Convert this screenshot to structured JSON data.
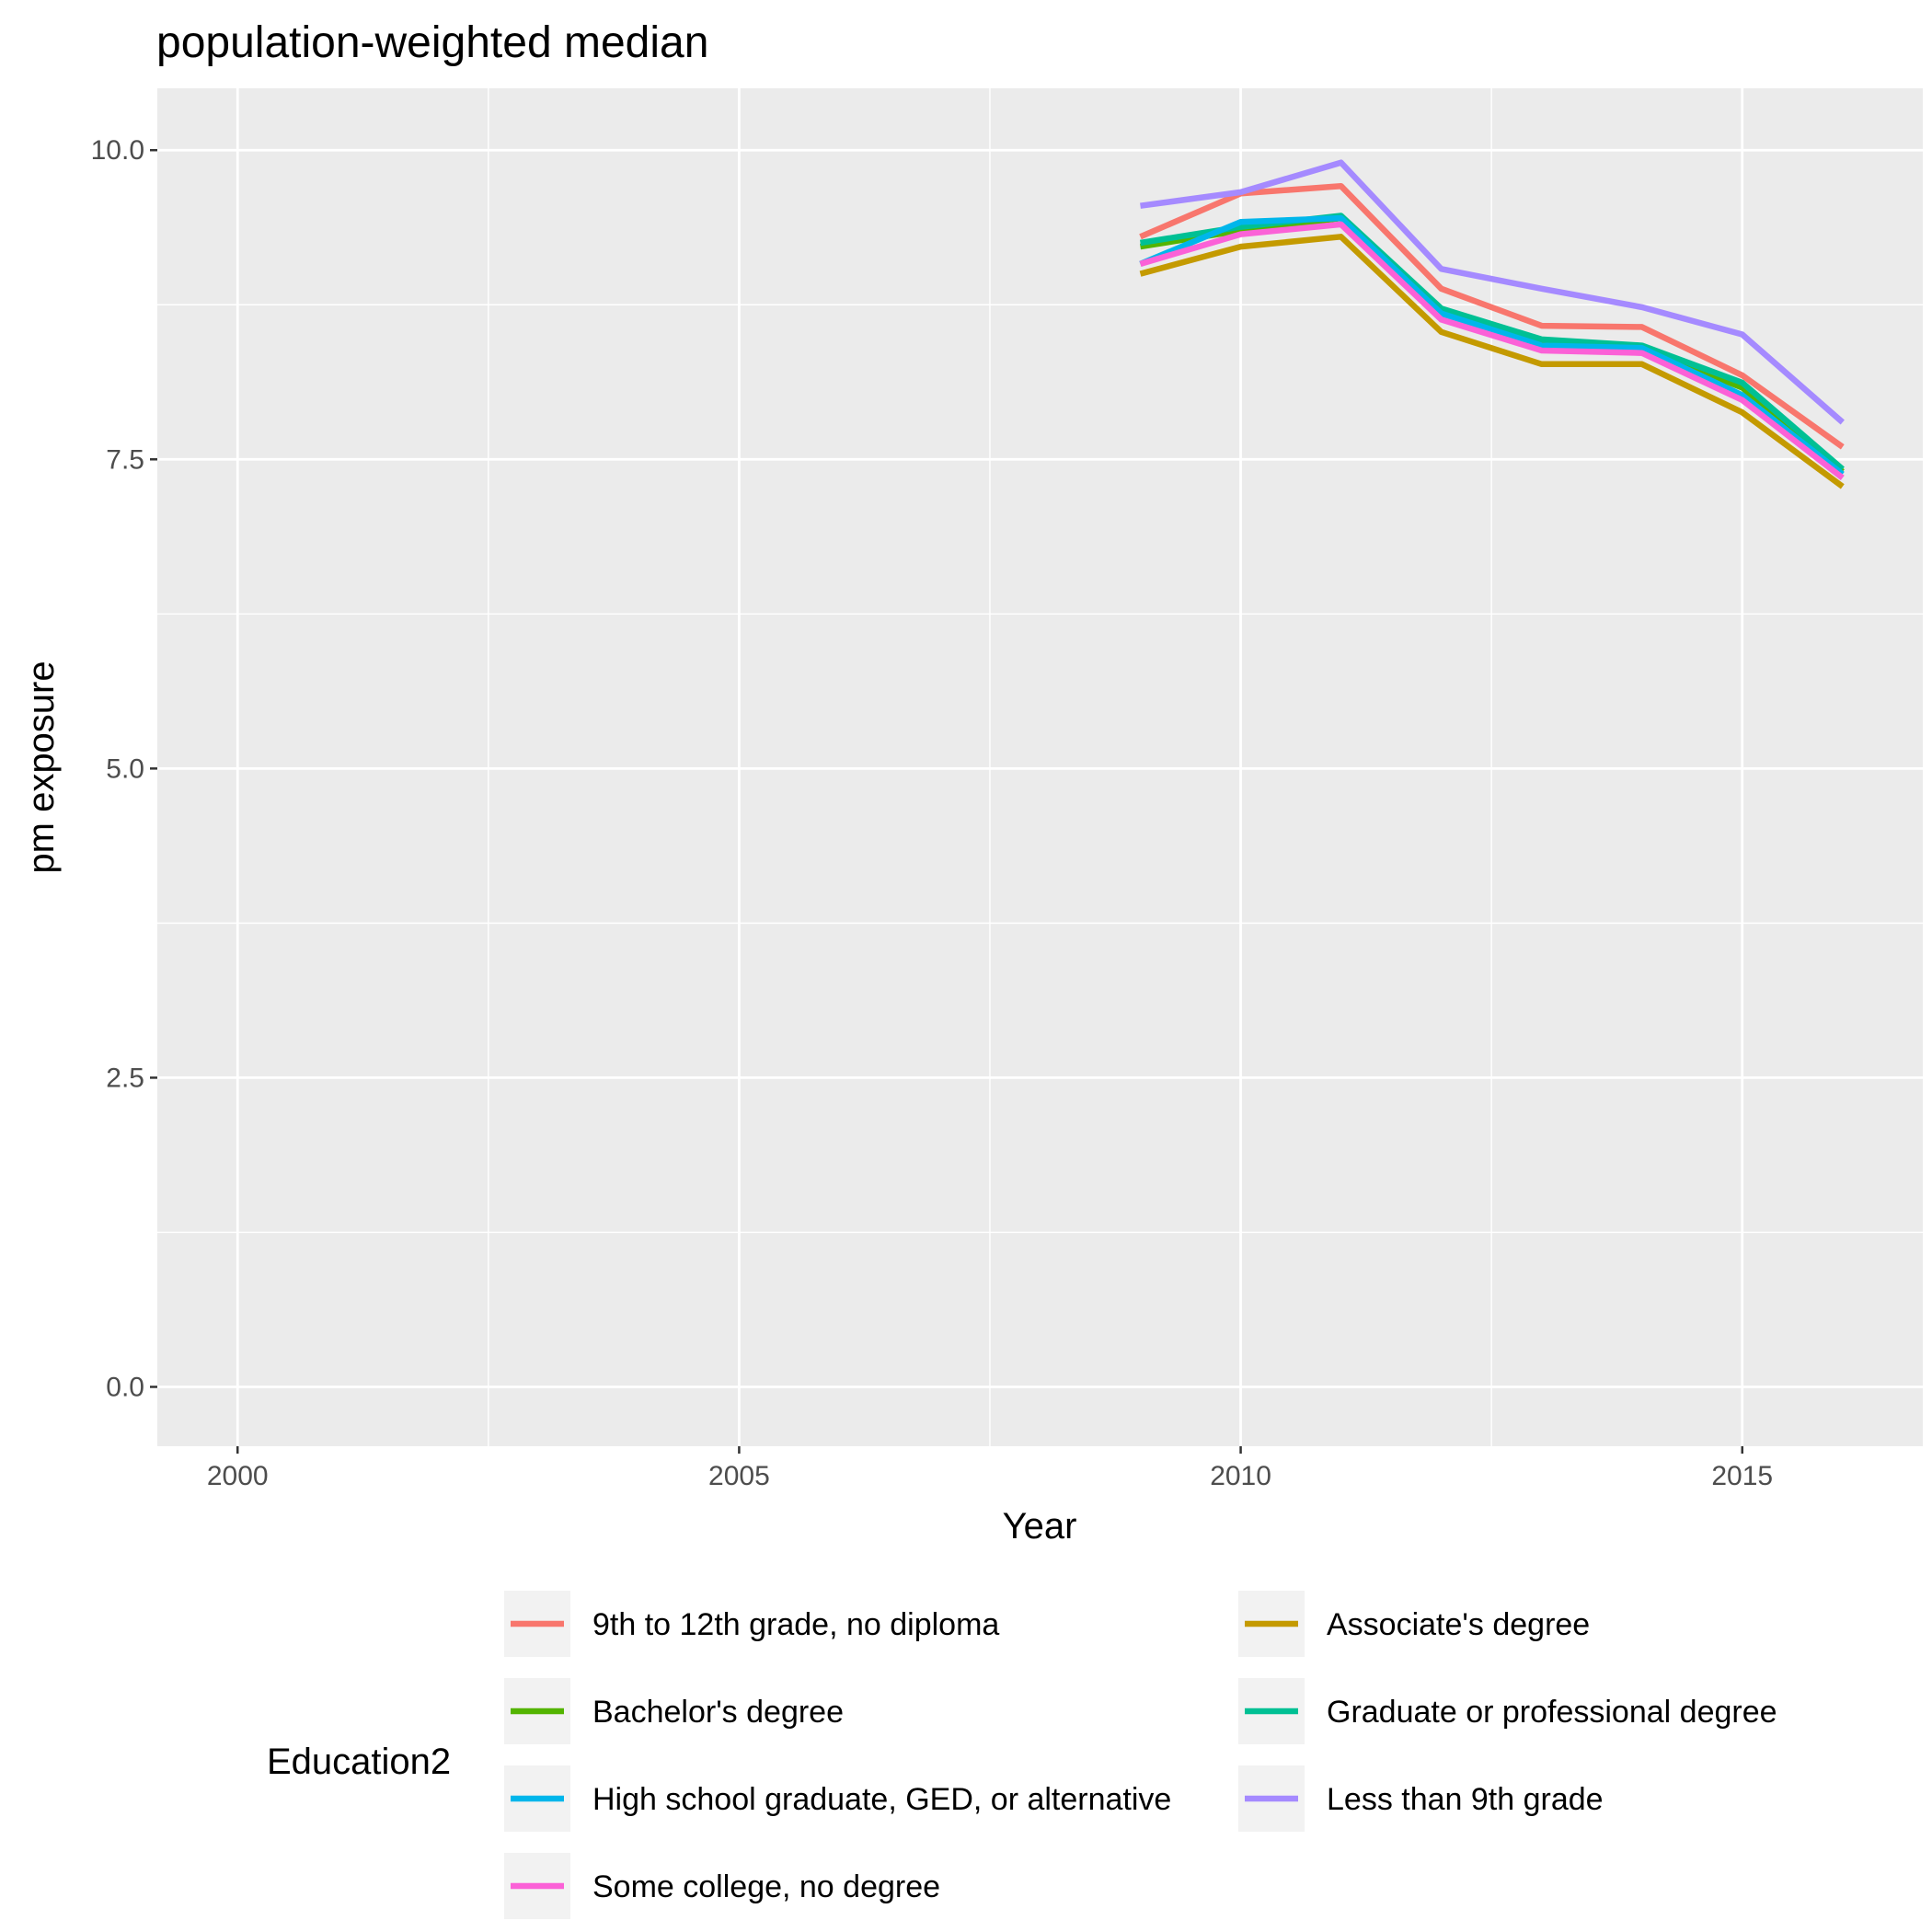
{
  "chart_data": {
    "type": "line",
    "title": "population-weighted median",
    "xlabel": "Year",
    "ylabel": "pm exposure",
    "xlim": [
      1999.2,
      2016.8
    ],
    "ylim": [
      -0.48,
      10.5
    ],
    "x_ticks": [
      2000,
      2005,
      2010,
      2015
    ],
    "x_tick_labels": [
      "2000",
      "2005",
      "2010",
      "2015"
    ],
    "y_ticks": [
      0,
      2.5,
      5,
      7.5,
      10
    ],
    "y_tick_labels": [
      "0.0",
      "2.5",
      "5.0",
      "7.5",
      "10.0"
    ],
    "grid": true,
    "legend_title": "Education2",
    "legend_position": "bottom",
    "x": [
      2009,
      2010,
      2011,
      2012,
      2013,
      2014,
      2015,
      2016
    ],
    "series": [
      {
        "name": "9th to 12th grade, no diploma",
        "color": "#F8766D",
        "values": [
          9.3,
          9.65,
          9.71,
          8.88,
          8.58,
          8.57,
          8.18,
          7.6
        ]
      },
      {
        "name": "Associate's degree",
        "color": "#C49A00",
        "values": [
          9.0,
          9.22,
          9.3,
          8.53,
          8.27,
          8.27,
          7.88,
          7.28
        ]
      },
      {
        "name": "Bachelor's degree",
        "color": "#53B400",
        "values": [
          9.22,
          9.35,
          9.45,
          8.7,
          8.45,
          8.4,
          8.08,
          7.4
        ]
      },
      {
        "name": "Graduate or professional degree",
        "color": "#00C094",
        "values": [
          9.25,
          9.38,
          9.47,
          8.72,
          8.47,
          8.42,
          8.12,
          7.42
        ]
      },
      {
        "name": "High school graduate, GED, or alternative",
        "color": "#00B6EB",
        "values": [
          9.08,
          9.42,
          9.45,
          8.68,
          8.42,
          8.4,
          8.02,
          7.38
        ]
      },
      {
        "name": "Less than 9th grade",
        "color": "#A58AFF",
        "values": [
          9.55,
          9.66,
          9.9,
          9.04,
          8.88,
          8.73,
          8.51,
          7.8
        ]
      },
      {
        "name": "Some college, no degree",
        "color": "#FB61D7",
        "values": [
          9.08,
          9.32,
          9.4,
          8.63,
          8.38,
          8.36,
          7.98,
          7.35
        ]
      }
    ],
    "legend_layout": [
      [
        "9th to 12th grade, no diploma",
        "Associate's degree"
      ],
      [
        "Bachelor's degree",
        "Graduate or professional degree"
      ],
      [
        "High school graduate, GED, or alternative",
        "Less than 9th grade"
      ],
      [
        "Some college, no degree",
        null
      ]
    ]
  }
}
